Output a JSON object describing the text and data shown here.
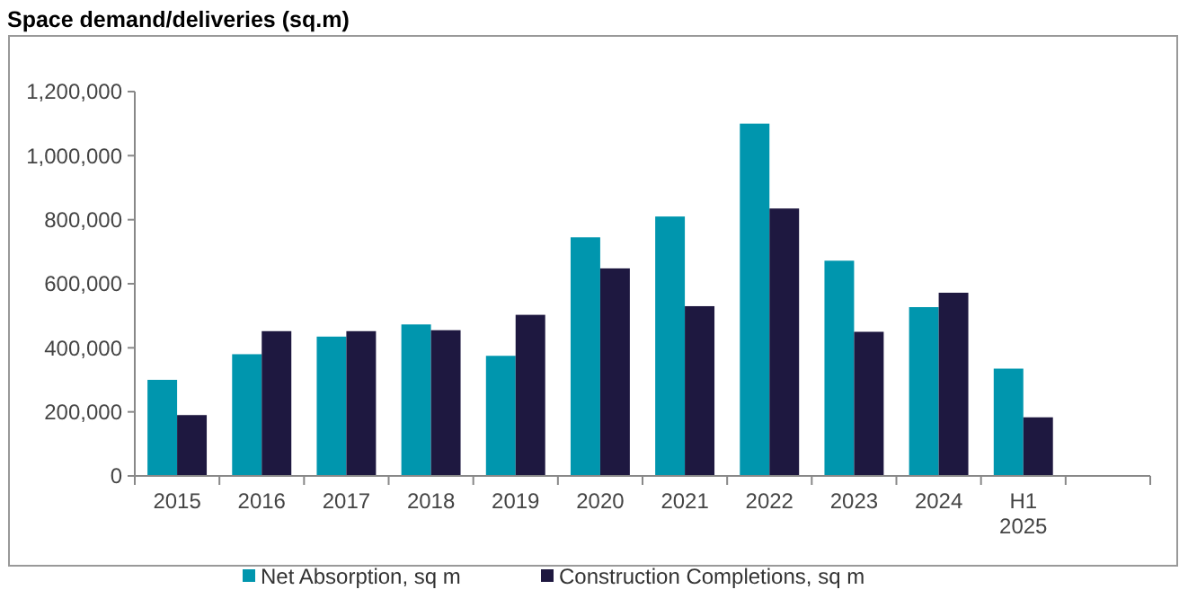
{
  "chart_data": {
    "type": "bar",
    "title": "Space demand/deliveries (sq.m)",
    "categories": [
      "2015",
      "2016",
      "2017",
      "2018",
      "2019",
      "2020",
      "2021",
      "2022",
      "2023",
      "2024",
      "H1 2025",
      null
    ],
    "series": [
      {
        "name": "Net Absorption, sq m",
        "color": "#0096ae",
        "values": [
          300000,
          380000,
          435000,
          473000,
          375000,
          745000,
          810000,
          1100000,
          672000,
          527000,
          335000,
          null
        ]
      },
      {
        "name": "Construction Completions, sq m",
        "color": "#1e1840",
        "values": [
          190000,
          452000,
          452000,
          455000,
          503000,
          648000,
          530000,
          835000,
          450000,
          572000,
          183000,
          null
        ]
      }
    ],
    "ylim": [
      0,
      1200000
    ],
    "yticks": [
      {
        "value": 0,
        "label": "0"
      },
      {
        "value": 200000,
        "label": "200,000"
      },
      {
        "value": 400000,
        "label": "400,000"
      },
      {
        "value": 600000,
        "label": "600,000"
      },
      {
        "value": 800000,
        "label": "800,000"
      },
      {
        "value": 1000000,
        "label": "1,000,000"
      },
      {
        "value": 1200000,
        "label": "1,200,000"
      }
    ],
    "grid": false,
    "legend": "bottom"
  }
}
